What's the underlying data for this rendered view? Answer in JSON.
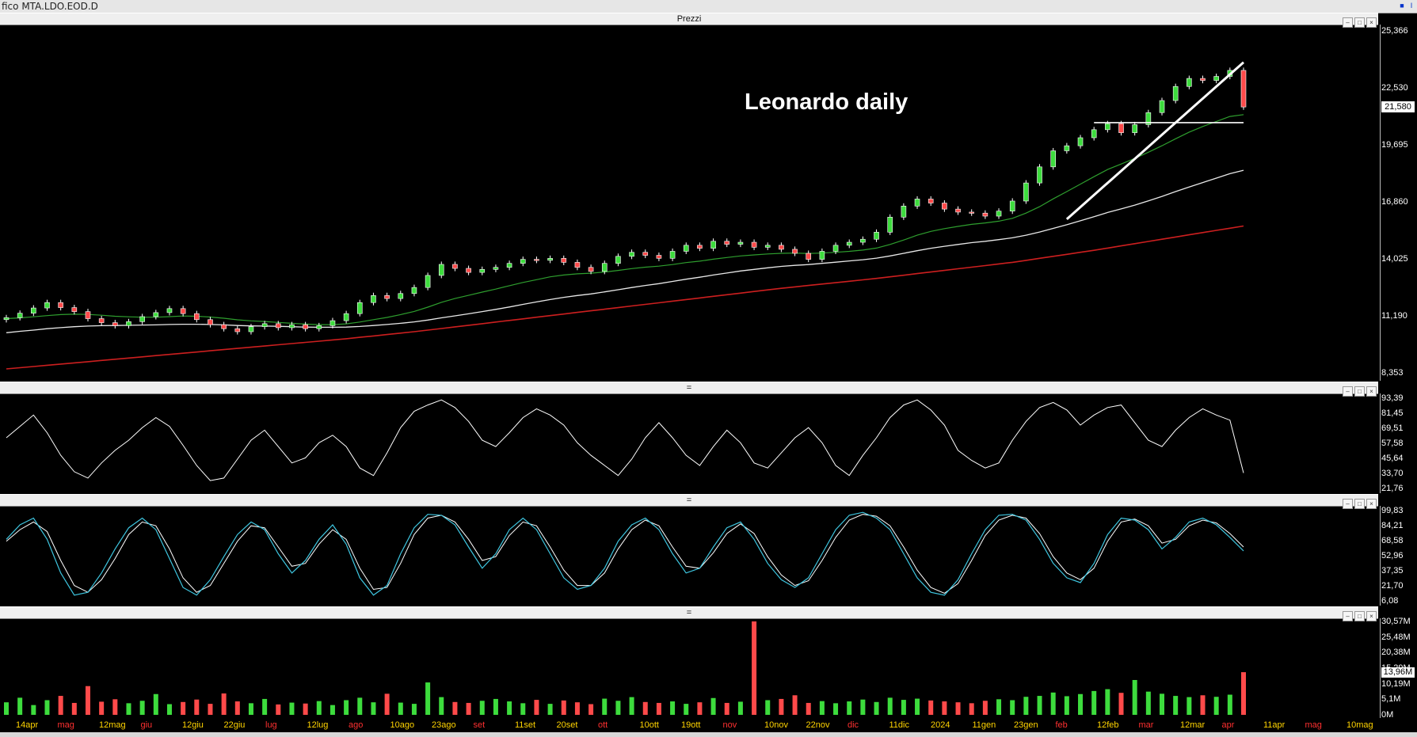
{
  "window": {
    "title": "fico MTA.LDO.EOD.D"
  },
  "panels": {
    "price_title": "Prezzi",
    "divider_glyph": "="
  },
  "chart_data": [
    {
      "type": "candlestick",
      "title": "Leonardo daily",
      "ylabels": [
        "25,366",
        "22,530",
        "19,695",
        "16,860",
        "14,025",
        "11,190",
        "8,353"
      ],
      "ylim": [
        8.353,
        25.366
      ],
      "current_value": "21,580",
      "xlabels": [
        {
          "t": "14apr",
          "c": "#ffd400"
        },
        {
          "t": "mag",
          "c": "#ff3030"
        },
        {
          "t": "12mag",
          "c": "#ffd400"
        },
        {
          "t": "giu",
          "c": "#ff3030"
        },
        {
          "t": "12giu",
          "c": "#ffd400"
        },
        {
          "t": "22giu",
          "c": "#ffd400"
        },
        {
          "t": "lug",
          "c": "#ff3030"
        },
        {
          "t": "12lug",
          "c": "#ffd400"
        },
        {
          "t": "ago",
          "c": "#ff3030"
        },
        {
          "t": "10ago",
          "c": "#ffd400"
        },
        {
          "t": "23ago",
          "c": "#ffd400"
        },
        {
          "t": "set",
          "c": "#ff3030"
        },
        {
          "t": "11set",
          "c": "#ffd400"
        },
        {
          "t": "20set",
          "c": "#ffd400"
        },
        {
          "t": "ott",
          "c": "#ff3030"
        },
        {
          "t": "10ott",
          "c": "#ffd400"
        },
        {
          "t": "19ott",
          "c": "#ffd400"
        },
        {
          "t": "nov",
          "c": "#ff3030"
        },
        {
          "t": "10nov",
          "c": "#ffd400"
        },
        {
          "t": "22nov",
          "c": "#ffd400"
        },
        {
          "t": "dic",
          "c": "#ff3030"
        },
        {
          "t": "11dic",
          "c": "#ffd400"
        },
        {
          "t": "2024",
          "c": "#ffd400"
        },
        {
          "t": "11gen",
          "c": "#ffd400"
        },
        {
          "t": "23gen",
          "c": "#ffd400"
        },
        {
          "t": "feb",
          "c": "#ff3030"
        },
        {
          "t": "12feb",
          "c": "#ffd400"
        },
        {
          "t": "mar",
          "c": "#ff3030"
        },
        {
          "t": "12mar",
          "c": "#ffd400"
        },
        {
          "t": "apr",
          "c": "#ff3030"
        },
        {
          "t": "11apr",
          "c": "#ffd400"
        },
        {
          "t": "mag",
          "c": "#ff3030"
        },
        {
          "t": "10mag",
          "c": "#ffd400"
        }
      ],
      "closes": [
        11.1,
        11.32,
        11.58,
        11.85,
        11.6,
        11.4,
        11.05,
        10.85,
        10.7,
        10.9,
        11.15,
        11.35,
        11.55,
        11.3,
        11.0,
        10.75,
        10.55,
        10.4,
        10.65,
        10.8,
        10.6,
        10.75,
        10.55,
        10.7,
        10.95,
        11.3,
        11.85,
        12.2,
        12.05,
        12.3,
        12.6,
        13.2,
        13.75,
        13.55,
        13.35,
        13.5,
        13.6,
        13.8,
        14.0,
        13.95,
        14.05,
        13.85,
        13.6,
        13.4,
        13.8,
        14.15,
        14.35,
        14.2,
        14.05,
        14.4,
        14.7,
        14.55,
        14.9,
        14.75,
        14.85,
        14.6,
        14.7,
        14.5,
        14.3,
        14.0,
        14.4,
        14.7,
        14.85,
        15.0,
        15.35,
        16.1,
        16.65,
        17.0,
        16.8,
        16.5,
        16.35,
        16.3,
        16.15,
        16.4,
        16.9,
        17.8,
        18.6,
        19.4,
        19.65,
        20.05,
        20.45,
        20.75,
        20.3,
        20.7,
        21.3,
        21.9,
        22.6,
        23.0,
        22.9,
        23.1,
        23.4,
        21.58
      ],
      "sma_fast": [
        11.05,
        11.09,
        11.14,
        11.2,
        11.25,
        11.27,
        11.26,
        11.22,
        11.17,
        11.14,
        11.12,
        11.12,
        11.15,
        11.18,
        11.17,
        11.13,
        11.07,
        10.99,
        10.94,
        10.91,
        10.86,
        10.82,
        10.78,
        10.75,
        10.75,
        10.79,
        10.88,
        11.0,
        11.11,
        11.25,
        11.41,
        11.62,
        11.86,
        12.05,
        12.21,
        12.37,
        12.52,
        12.69,
        12.85,
        12.99,
        13.13,
        13.22,
        13.28,
        13.31,
        13.37,
        13.45,
        13.54,
        13.61,
        13.66,
        13.74,
        13.84,
        13.91,
        14.01,
        14.09,
        14.17,
        14.22,
        14.27,
        14.3,
        14.31,
        14.29,
        14.31,
        14.35,
        14.4,
        14.46,
        14.56,
        14.74,
        14.96,
        15.2,
        15.39,
        15.53,
        15.64,
        15.74,
        15.81,
        15.9,
        16.04,
        16.3,
        16.62,
        17.01,
        17.37,
        17.74,
        18.11,
        18.47,
        18.74,
        19.02,
        19.33,
        19.65,
        20.0,
        20.33,
        20.61,
        20.86,
        21.11,
        21.2
      ],
      "sma_slow": [
        10.35,
        10.42,
        10.48,
        10.55,
        10.6,
        10.65,
        10.68,
        10.7,
        10.71,
        10.72,
        10.73,
        10.74,
        10.76,
        10.77,
        10.77,
        10.76,
        10.74,
        10.71,
        10.69,
        10.68,
        10.67,
        10.65,
        10.63,
        10.62,
        10.62,
        10.63,
        10.66,
        10.71,
        10.76,
        10.82,
        10.89,
        10.98,
        11.09,
        11.19,
        11.29,
        11.4,
        11.51,
        11.63,
        11.76,
        11.88,
        12.0,
        12.11,
        12.2,
        12.28,
        12.38,
        12.49,
        12.6,
        12.7,
        12.79,
        12.9,
        13.01,
        13.11,
        13.22,
        13.32,
        13.42,
        13.5,
        13.58,
        13.65,
        13.7,
        13.74,
        13.8,
        13.86,
        13.92,
        13.98,
        14.06,
        14.17,
        14.3,
        14.43,
        14.55,
        14.65,
        14.74,
        14.83,
        14.9,
        14.98,
        15.07,
        15.2,
        15.36,
        15.54,
        15.72,
        15.92,
        16.12,
        16.33,
        16.51,
        16.7,
        16.91,
        17.13,
        17.37,
        17.6,
        17.82,
        18.04,
        18.26,
        18.43
      ],
      "sma_long": [
        8.55,
        8.61,
        8.67,
        8.73,
        8.79,
        8.85,
        8.91,
        8.97,
        9.03,
        9.09,
        9.15,
        9.21,
        9.27,
        9.33,
        9.39,
        9.45,
        9.51,
        9.57,
        9.63,
        9.69,
        9.75,
        9.81,
        9.87,
        9.93,
        9.99,
        10.05,
        10.12,
        10.19,
        10.26,
        10.33,
        10.4,
        10.48,
        10.56,
        10.64,
        10.72,
        10.8,
        10.88,
        10.96,
        11.04,
        11.12,
        11.2,
        11.28,
        11.36,
        11.44,
        11.52,
        11.6,
        11.68,
        11.76,
        11.84,
        11.92,
        12.0,
        12.08,
        12.16,
        12.24,
        12.32,
        12.4,
        12.48,
        12.56,
        12.63,
        12.7,
        12.77,
        12.84,
        12.91,
        12.98,
        13.05,
        13.13,
        13.21,
        13.29,
        13.37,
        13.45,
        13.53,
        13.61,
        13.69,
        13.77,
        13.85,
        13.95,
        14.05,
        14.15,
        14.25,
        14.35,
        14.45,
        14.56,
        14.67,
        14.78,
        14.89,
        15.0,
        15.11,
        15.22,
        15.33,
        15.44,
        15.55,
        15.66
      ],
      "trendline": {
        "from_index": 78,
        "from_value": 16.0,
        "to_index": 91,
        "to_value": 23.8
      },
      "hline": {
        "value": 20.8,
        "from_index": 80,
        "to_index": 91
      }
    },
    {
      "type": "line",
      "ylabels": [
        "93,39",
        "81,45",
        "69,51",
        "57,58",
        "45,64",
        "33,70",
        "21,76"
      ],
      "ylim": [
        21.76,
        93.39
      ],
      "values": [
        62,
        71,
        80,
        66,
        48,
        35,
        30,
        42,
        52,
        60,
        70,
        78,
        71,
        56,
        40,
        28,
        30,
        45,
        60,
        68,
        55,
        42,
        46,
        58,
        64,
        55,
        38,
        32,
        50,
        70,
        83,
        88,
        92,
        86,
        75,
        60,
        55,
        66,
        78,
        85,
        80,
        72,
        58,
        48,
        40,
        32,
        45,
        62,
        74,
        62,
        48,
        40,
        55,
        68,
        58,
        42,
        38,
        50,
        62,
        70,
        58,
        40,
        32,
        48,
        62,
        78,
        88,
        92,
        84,
        72,
        52,
        44,
        38,
        42,
        60,
        75,
        86,
        90,
        84,
        72,
        80,
        86,
        88,
        74,
        60,
        55,
        68,
        78,
        85,
        80,
        76,
        34
      ]
    },
    {
      "type": "line",
      "ylabels": [
        "99,83",
        "84,21",
        "68,58",
        "52,96",
        "37,35",
        "21,70",
        "6,08"
      ],
      "ylim": [
        6.08,
        99.83
      ],
      "k": [
        70,
        85,
        92,
        70,
        35,
        12,
        15,
        35,
        60,
        82,
        92,
        80,
        50,
        20,
        12,
        28,
        52,
        75,
        88,
        80,
        55,
        35,
        48,
        70,
        85,
        65,
        30,
        12,
        22,
        55,
        82,
        96,
        95,
        85,
        62,
        40,
        55,
        80,
        92,
        80,
        55,
        30,
        18,
        22,
        40,
        68,
        85,
        92,
        80,
        55,
        35,
        40,
        62,
        82,
        88,
        70,
        45,
        28,
        20,
        30,
        55,
        80,
        95,
        98,
        92,
        80,
        55,
        30,
        15,
        12,
        28,
        55,
        80,
        95,
        96,
        90,
        70,
        45,
        30,
        25,
        45,
        75,
        92,
        90,
        80,
        60,
        72,
        88,
        92,
        85,
        72,
        58
      ],
      "d": [
        68,
        80,
        88,
        78,
        48,
        22,
        15,
        28,
        50,
        75,
        88,
        84,
        60,
        30,
        15,
        22,
        45,
        68,
        84,
        82,
        62,
        42,
        45,
        65,
        80,
        70,
        40,
        18,
        20,
        45,
        75,
        92,
        95,
        88,
        70,
        48,
        52,
        74,
        88,
        84,
        62,
        38,
        22,
        22,
        35,
        60,
        80,
        90,
        84,
        62,
        42,
        40,
        56,
        76,
        86,
        76,
        52,
        33,
        22,
        27,
        48,
        72,
        90,
        96,
        94,
        84,
        62,
        38,
        20,
        14,
        24,
        48,
        74,
        90,
        95,
        92,
        76,
        52,
        35,
        28,
        40,
        68,
        88,
        91,
        84,
        66,
        70,
        84,
        90,
        87,
        76,
        62
      ]
    },
    {
      "type": "bar",
      "ylabels": [
        "30,57M",
        "25,48M",
        "20,38M",
        "15,29M",
        "10,19M",
        "5,1M",
        "0M"
      ],
      "ylim": [
        0,
        30.57
      ],
      "current_value": "13,96M",
      "values": [
        4.1,
        5.6,
        3.2,
        4.8,
        6.2,
        3.9,
        9.4,
        4.3,
        5.1,
        3.8,
        4.6,
        6.8,
        3.5,
        4.2,
        5.0,
        3.6,
        7.0,
        4.4,
        3.8,
        5.2,
        3.4,
        4.0,
        3.7,
        4.5,
        3.2,
        4.8,
        5.6,
        4.1,
        6.9,
        4.0,
        3.6,
        10.6,
        5.8,
        4.2,
        3.9,
        4.6,
        5.2,
        4.4,
        3.8,
        4.9,
        3.6,
        4.7,
        4.1,
        3.5,
        5.3,
        4.6,
        5.8,
        4.2,
        3.9,
        4.4,
        3.6,
        4.1,
        5.5,
        3.9,
        4.3,
        30.57,
        4.8,
        5.2,
        6.4,
        3.9,
        4.5,
        3.8,
        4.4,
        5.0,
        4.2,
        5.6,
        4.9,
        5.3,
        4.7,
        4.4,
        4.1,
        3.8,
        4.6,
        5.1,
        4.8,
        5.9,
        6.2,
        7.3,
        6.1,
        6.8,
        7.8,
        8.4,
        7.2,
        11.4,
        7.6,
        6.9,
        6.2,
        5.8,
        6.4,
        5.9,
        6.6,
        13.96
      ]
    }
  ]
}
